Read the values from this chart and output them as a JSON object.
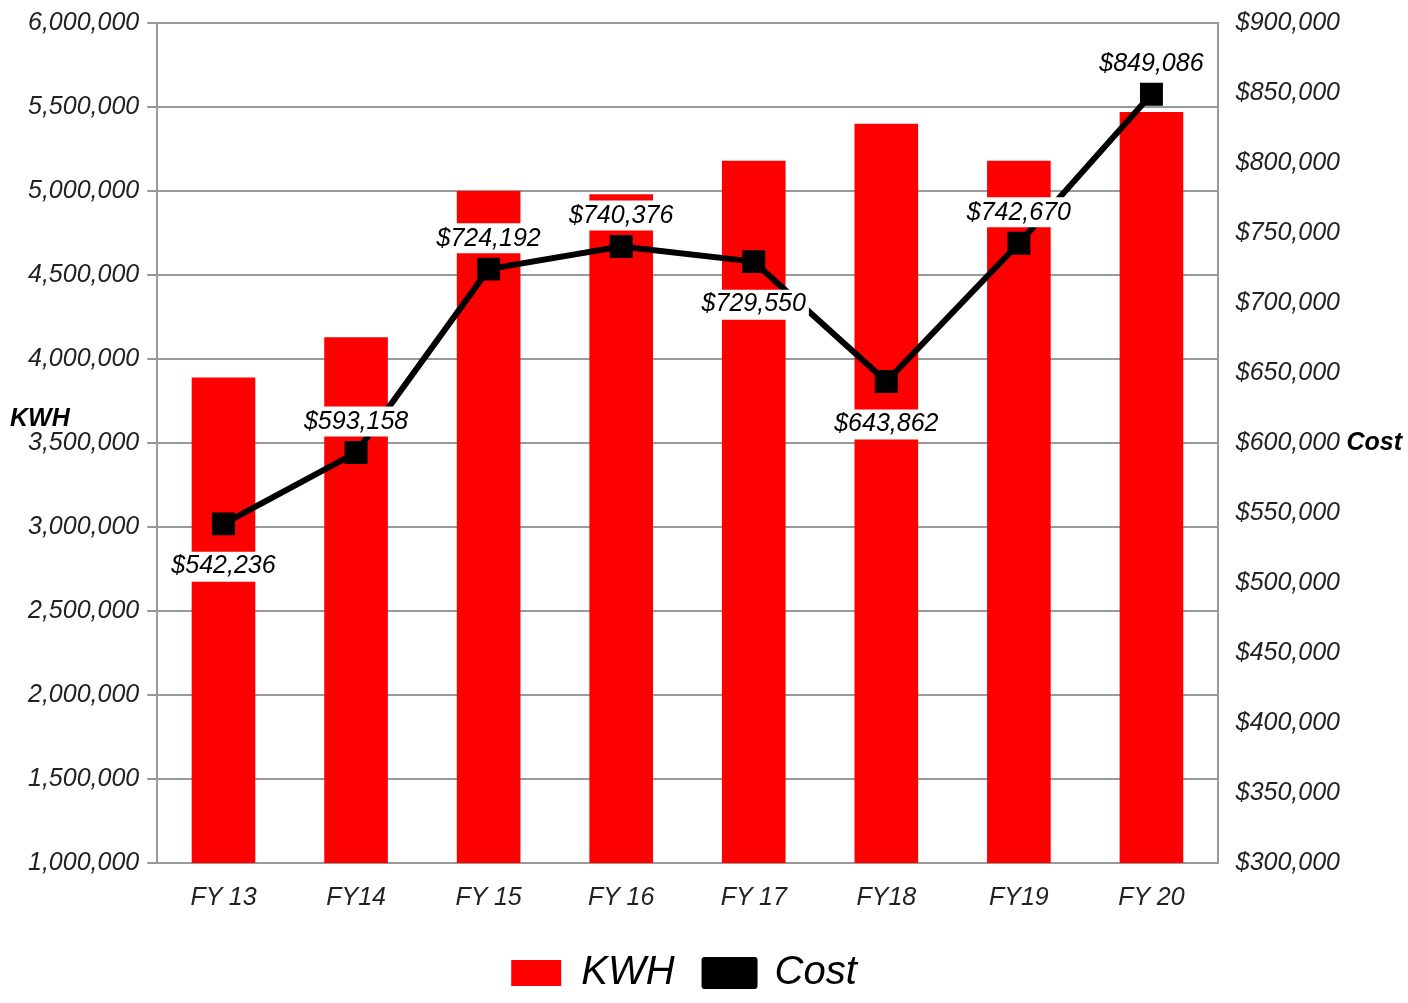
{
  "chart_data": {
    "type": "bar",
    "categories": [
      "FY 13",
      "FY14",
      "FY 15",
      "FY 16",
      "FY 17",
      "FY18",
      "FY19",
      "FY 20"
    ],
    "ylabel": "KWH",
    "y2label": "Cost",
    "series": [
      {
        "name": "KWH",
        "color": "#ff0000",
        "values": [
          3890000,
          4130000,
          5000000,
          4980000,
          5180000,
          5400000,
          5180000,
          5470000
        ]
      },
      {
        "name": "Cost",
        "type": "line",
        "axis": "y2",
        "color": "#000000",
        "marker": "square",
        "values": [
          542236,
          593158,
          724192,
          740376,
          729550,
          643862,
          742670,
          849086
        ],
        "value_labels": [
          "$542,236",
          "$593,158",
          "$724,192",
          "$740,376",
          "$729,550",
          "$643,862",
          "$742,670",
          "$849,086"
        ]
      }
    ],
    "ylim": [
      1000000,
      6000000
    ],
    "yticks": [
      {
        "value": 1000000,
        "label": "1,000,000"
      },
      {
        "value": 1500000,
        "label": "1,500,000"
      },
      {
        "value": 2000000,
        "label": "2,000,000"
      },
      {
        "value": 2500000,
        "label": "2,500,000"
      },
      {
        "value": 3000000,
        "label": "3,000,000"
      },
      {
        "value": 3500000,
        "label": "3,500,000"
      },
      {
        "value": 4000000,
        "label": "4,000,000"
      },
      {
        "value": 4500000,
        "label": "4,500,000"
      },
      {
        "value": 5000000,
        "label": "5,000,000"
      },
      {
        "value": 5500000,
        "label": "5,500,000"
      },
      {
        "value": 6000000,
        "label": "6,000,000"
      }
    ],
    "y2lim": [
      300000,
      900000
    ],
    "y2ticks": [
      {
        "value": 300000,
        "label": "$300,000"
      },
      {
        "value": 350000,
        "label": "$350,000"
      },
      {
        "value": 400000,
        "label": "$400,000"
      },
      {
        "value": 450000,
        "label": "$450,000"
      },
      {
        "value": 500000,
        "label": "$500,000"
      },
      {
        "value": 550000,
        "label": "$550,000"
      },
      {
        "value": 600000,
        "label": "$600,000"
      },
      {
        "value": 650000,
        "label": "$650,000"
      },
      {
        "value": 700000,
        "label": "$700,000"
      },
      {
        "value": 750000,
        "label": "$750,000"
      },
      {
        "value": 800000,
        "label": "$800,000"
      },
      {
        "value": 850000,
        "label": "$850,000"
      },
      {
        "value": 900000,
        "label": "$900,000"
      }
    ],
    "grid": "y",
    "legend": "bottom"
  }
}
